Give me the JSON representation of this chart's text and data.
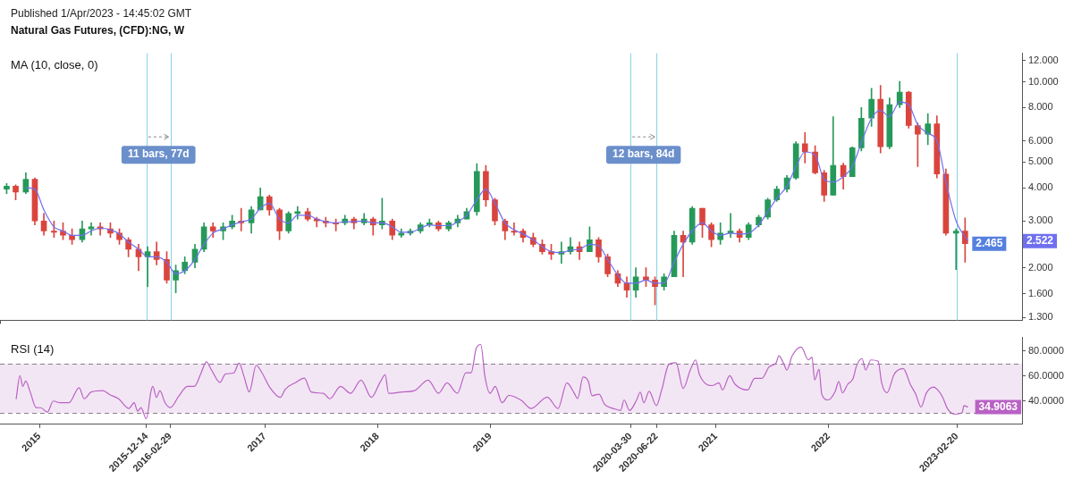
{
  "chart_data": [
    {
      "type": "candlestick",
      "subtitle": "Published 1/Apr/2023 - 14:45:02 GMT",
      "title": "Natural Gas Futures, (CFD):NG, W",
      "log": true,
      "tick_labels": "y",
      "xlim": [
        2014.651,
        2023.715
      ],
      "ylim": [
        1.27,
        12.8
      ],
      "yticks": [
        {
          "value": 1.3,
          "label": "1.300"
        },
        {
          "value": 1.6,
          "label": "1.600"
        },
        {
          "value": 2,
          "label": "2.000"
        },
        {
          "value": 3,
          "label": "3.000"
        },
        {
          "value": 4,
          "label": "4.000"
        },
        {
          "value": 5,
          "label": "5.000"
        },
        {
          "value": 6,
          "label": "6.000"
        },
        {
          "value": 8,
          "label": "8.000"
        },
        {
          "value": 10,
          "label": "10.000"
        },
        {
          "value": 12,
          "label": "12.000"
        }
      ],
      "ref_lines": [
        {
          "axis": "x",
          "value": 2015.951,
          "color": "#86d3e4",
          "label": "11 bars, 77d"
        },
        {
          "axis": "x",
          "value": 2016.162,
          "color": "#86d3e4"
        },
        {
          "axis": "x",
          "value": 2020.243,
          "color": "#86d3e4",
          "label": "12 bars, 84d"
        },
        {
          "axis": "x",
          "value": 2020.473,
          "color": "#86d3e4"
        },
        {
          "axis": "x",
          "value": 2023.137,
          "color": "#86d3e4"
        }
      ],
      "annotations": [
        "MA (10, close, 0)",
        {
          "text": "2.522",
          "y": 2.522
        },
        {
          "text": "2.465",
          "x": 2023.21,
          "y": 2.465
        }
      ],
      "series": [
        {
          "type": "candlestick",
          "x": [
            2014.71,
            2014.79,
            2014.88,
            2014.96,
            2015.04,
            2015.13,
            2015.21,
            2015.29,
            2015.38,
            2015.46,
            2015.54,
            2015.63,
            2015.71,
            2015.79,
            2015.88,
            2015.96,
            2016.04,
            2016.13,
            2016.21,
            2016.29,
            2016.38,
            2016.46,
            2016.54,
            2016.63,
            2016.71,
            2016.79,
            2016.88,
            2016.96,
            2017.04,
            2017.13,
            2017.21,
            2017.29,
            2017.38,
            2017.46,
            2017.54,
            2017.63,
            2017.71,
            2017.79,
            2017.88,
            2017.96,
            2018.04,
            2018.13,
            2018.21,
            2018.29,
            2018.38,
            2018.46,
            2018.54,
            2018.63,
            2018.71,
            2018.79,
            2018.88,
            2018.96,
            2019.04,
            2019.13,
            2019.21,
            2019.29,
            2019.38,
            2019.46,
            2019.54,
            2019.63,
            2019.71,
            2019.79,
            2019.88,
            2019.96,
            2020.04,
            2020.13,
            2020.21,
            2020.29,
            2020.38,
            2020.46,
            2020.54,
            2020.63,
            2020.71,
            2020.79,
            2020.88,
            2020.96,
            2021.04,
            2021.13,
            2021.21,
            2021.29,
            2021.38,
            2021.46,
            2021.54,
            2021.63,
            2021.71,
            2021.79,
            2021.88,
            2021.96,
            2022.04,
            2022.13,
            2022.21,
            2022.29,
            2022.38,
            2022.46,
            2022.54,
            2022.63,
            2022.71,
            2022.79,
            2022.88,
            2022.96,
            2023.04,
            2023.13,
            2023.21
          ],
          "ohlc": [
            [
              3.95,
              4.15,
              3.8,
              4.05
            ],
            [
              4.05,
              4.1,
              3.6,
              3.85
            ],
            [
              3.85,
              4.55,
              3.8,
              4.3
            ],
            [
              4.3,
              4.35,
              2.9,
              3.0
            ],
            [
              3.0,
              3.2,
              2.65,
              2.75
            ],
            [
              2.75,
              3.0,
              2.6,
              2.72
            ],
            [
              2.75,
              2.95,
              2.55,
              2.65
            ],
            [
              2.65,
              2.8,
              2.45,
              2.55
            ],
            [
              2.55,
              3.0,
              2.5,
              2.8
            ],
            [
              2.8,
              2.95,
              2.65,
              2.85
            ],
            [
              2.85,
              2.95,
              2.65,
              2.8
            ],
            [
              2.8,
              2.95,
              2.6,
              2.7
            ],
            [
              2.7,
              2.8,
              2.45,
              2.55
            ],
            [
              2.55,
              2.6,
              2.2,
              2.35
            ],
            [
              2.35,
              2.45,
              1.95,
              2.2
            ],
            [
              2.2,
              2.4,
              1.7,
              2.3
            ],
            [
              2.3,
              2.5,
              2.05,
              2.15
            ],
            [
              2.15,
              2.3,
              1.75,
              1.8
            ],
            [
              1.8,
              2.05,
              1.61,
              1.95
            ],
            [
              1.95,
              2.2,
              1.9,
              2.1
            ],
            [
              2.1,
              2.45,
              2.0,
              2.35
            ],
            [
              2.35,
              2.95,
              2.3,
              2.85
            ],
            [
              2.85,
              2.95,
              2.6,
              2.75
            ],
            [
              2.75,
              2.95,
              2.55,
              2.85
            ],
            [
              2.85,
              3.15,
              2.8,
              3.0
            ],
            [
              3.0,
              3.35,
              2.75,
              2.95
            ],
            [
              2.95,
              3.4,
              2.7,
              3.3
            ],
            [
              3.3,
              3.99,
              3.3,
              3.7
            ],
            [
              3.7,
              3.75,
              3.15,
              3.3
            ],
            [
              3.3,
              3.35,
              2.55,
              2.75
            ],
            [
              2.75,
              3.25,
              2.7,
              3.2
            ],
            [
              3.2,
              3.4,
              3.05,
              3.25
            ],
            [
              3.25,
              3.35,
              3.0,
              3.05
            ],
            [
              3.05,
              3.1,
              2.85,
              3.0
            ],
            [
              3.0,
              3.1,
              2.85,
              2.95
            ],
            [
              2.95,
              3.05,
              2.75,
              2.92
            ],
            [
              2.95,
              3.15,
              2.9,
              3.05
            ],
            [
              3.05,
              3.1,
              2.8,
              2.95
            ],
            [
              2.95,
              3.2,
              2.9,
              3.05
            ],
            [
              3.05,
              3.1,
              2.65,
              2.9
            ],
            [
              2.9,
              3.65,
              2.8,
              3.0
            ],
            [
              3.0,
              3.05,
              2.55,
              2.65
            ],
            [
              2.65,
              2.8,
              2.6,
              2.7
            ],
            [
              2.7,
              2.8,
              2.65,
              2.75
            ],
            [
              2.75,
              2.95,
              2.7,
              2.9
            ],
            [
              2.9,
              3.05,
              2.85,
              2.95
            ],
            [
              2.95,
              3.0,
              2.75,
              2.8
            ],
            [
              2.8,
              3.0,
              2.75,
              2.95
            ],
            [
              2.95,
              3.15,
              2.85,
              3.05
            ],
            [
              3.05,
              3.35,
              3.05,
              3.25
            ],
            [
              3.25,
              4.93,
              3.15,
              4.6
            ],
            [
              4.6,
              4.85,
              3.4,
              3.6
            ],
            [
              3.6,
              3.65,
              2.9,
              3.0
            ],
            [
              3.0,
              3.05,
              2.55,
              2.75
            ],
            [
              2.75,
              2.95,
              2.65,
              2.72
            ],
            [
              2.75,
              2.8,
              2.5,
              2.6
            ],
            [
              2.6,
              2.7,
              2.4,
              2.45
            ],
            [
              2.45,
              2.55,
              2.25,
              2.3
            ],
            [
              2.3,
              2.45,
              2.15,
              2.25
            ],
            [
              2.25,
              2.5,
              2.08,
              2.3
            ],
            [
              2.3,
              2.6,
              2.25,
              2.4
            ],
            [
              2.4,
              2.5,
              2.15,
              2.3
            ],
            [
              2.3,
              2.85,
              2.3,
              2.55
            ],
            [
              2.55,
              2.6,
              2.1,
              2.2
            ],
            [
              2.2,
              2.25,
              1.85,
              1.9
            ],
            [
              1.9,
              1.95,
              1.7,
              1.75
            ],
            [
              1.75,
              1.85,
              1.55,
              1.65
            ],
            [
              1.65,
              2.0,
              1.55,
              1.85
            ],
            [
              1.85,
              2.0,
              1.7,
              1.8
            ],
            [
              1.8,
              1.85,
              1.45,
              1.7
            ],
            [
              1.7,
              1.9,
              1.65,
              1.85
            ],
            [
              1.85,
              2.75,
              1.85,
              2.65
            ],
            [
              2.65,
              2.75,
              1.85,
              2.5
            ],
            [
              2.5,
              3.4,
              2.45,
              3.35
            ],
            [
              3.35,
              3.35,
              2.6,
              2.9
            ],
            [
              2.9,
              2.95,
              2.4,
              2.55
            ],
            [
              2.55,
              2.95,
              2.45,
              2.7
            ],
            [
              2.7,
              3.2,
              2.6,
              2.75
            ],
            [
              2.75,
              2.8,
              2.5,
              2.6
            ],
            [
              2.6,
              2.95,
              2.55,
              2.9
            ],
            [
              2.9,
              3.15,
              2.85,
              3.1
            ],
            [
              3.1,
              3.65,
              3.05,
              3.6
            ],
            [
              3.6,
              4.05,
              3.55,
              3.95
            ],
            [
              3.95,
              4.45,
              3.85,
              4.35
            ],
            [
              4.35,
              5.95,
              4.3,
              5.85
            ],
            [
              5.85,
              6.45,
              4.95,
              5.45
            ],
            [
              5.45,
              5.75,
              4.5,
              4.55
            ],
            [
              4.55,
              4.65,
              3.55,
              3.75
            ],
            [
              3.75,
              7.4,
              3.75,
              4.85
            ],
            [
              4.85,
              4.95,
              3.95,
              4.4
            ],
            [
              4.4,
              5.7,
              4.4,
              5.65
            ],
            [
              5.65,
              8.0,
              5.5,
              7.3
            ],
            [
              7.3,
              9.45,
              6.8,
              8.6
            ],
            [
              8.6,
              9.7,
              5.4,
              5.7
            ],
            [
              5.7,
              8.7,
              5.6,
              8.2
            ],
            [
              8.2,
              10.03,
              8.0,
              9.15
            ],
            [
              9.15,
              9.2,
              6.7,
              6.85
            ],
            [
              6.85,
              7.0,
              4.8,
              6.35
            ],
            [
              6.35,
              7.6,
              5.8,
              6.95
            ],
            [
              6.95,
              7.45,
              4.35,
              4.5
            ],
            [
              4.5,
              4.7,
              2.65,
              2.7
            ],
            [
              2.7,
              2.8,
              1.97,
              2.75
            ],
            [
              2.75,
              3.08,
              2.1,
              2.465
            ]
          ],
          "colors": [
            "#26995a",
            "#d9453d",
            "#26995a",
            "#d9453d",
            "#d9453d",
            "#d9453d",
            "#d9453d",
            "#d9453d",
            "#26995a",
            "#26995a",
            "#d9453d",
            "#d9453d",
            "#d9453d",
            "#d9453d",
            "#d9453d",
            "#26995a",
            "#d9453d",
            "#d9453d",
            "#26995a",
            "#26995a",
            "#26995a",
            "#26995a",
            "#d9453d",
            "#26995a",
            "#26995a",
            "#d9453d",
            "#26995a",
            "#26995a",
            "#d9453d",
            "#d9453d",
            "#26995a",
            "#26995a",
            "#d9453d",
            "#d9453d",
            "#d9453d",
            "#d9453d",
            "#26995a",
            "#d9453d",
            "#26995a",
            "#d9453d",
            "#26995a",
            "#d9453d",
            "#26995a",
            "#26995a",
            "#26995a",
            "#26995a",
            "#d9453d",
            "#26995a",
            "#26995a",
            "#26995a",
            "#26995a",
            "#d9453d",
            "#d9453d",
            "#d9453d",
            "#d9453d",
            "#d9453d",
            "#d9453d",
            "#d9453d",
            "#d9453d",
            "#26995a",
            "#26995a",
            "#d9453d",
            "#26995a",
            "#d9453d",
            "#d9453d",
            "#d9453d",
            "#d9453d",
            "#26995a",
            "#d9453d",
            "#d9453d",
            "#26995a",
            "#26995a",
            "#d9453d",
            "#26995a",
            "#d9453d",
            "#d9453d",
            "#26995a",
            "#26995a",
            "#d9453d",
            "#26995a",
            "#26995a",
            "#26995a",
            "#26995a",
            "#26995a",
            "#26995a",
            "#d9453d",
            "#d9453d",
            "#d9453d",
            "#26995a",
            "#d9453d",
            "#26995a",
            "#26995a",
            "#26995a",
            "#d9453d",
            "#26995a",
            "#26995a",
            "#d9453d",
            "#d9453d",
            "#26995a",
            "#d9453d",
            "#d9453d",
            "#26995a",
            "#d9453d"
          ]
        },
        {
          "type": "line",
          "color": "#6f6ff0",
          "x": [
            2014.88,
            2014.96,
            2015.04,
            2015.13,
            2015.21,
            2015.29,
            2015.38,
            2015.46,
            2015.54,
            2015.63,
            2015.71,
            2015.79,
            2015.88,
            2015.96,
            2016.04,
            2016.13,
            2016.21,
            2016.29,
            2016.38,
            2016.46,
            2016.54,
            2016.63,
            2016.71,
            2016.79,
            2016.88,
            2016.96,
            2017.04,
            2017.13,
            2017.21,
            2017.29,
            2017.38,
            2017.46,
            2017.54,
            2017.63,
            2017.71,
            2017.79,
            2017.88,
            2017.96,
            2018.04,
            2018.13,
            2018.21,
            2018.29,
            2018.38,
            2018.46,
            2018.54,
            2018.63,
            2018.71,
            2018.79,
            2018.88,
            2018.96,
            2019.04,
            2019.13,
            2019.21,
            2019.29,
            2019.38,
            2019.46,
            2019.54,
            2019.63,
            2019.71,
            2019.79,
            2019.88,
            2019.96,
            2020.04,
            2020.13,
            2020.21,
            2020.29,
            2020.38,
            2020.46,
            2020.54,
            2020.63,
            2020.71,
            2020.79,
            2020.88,
            2020.96,
            2021.04,
            2021.13,
            2021.21,
            2021.29,
            2021.38,
            2021.46,
            2021.54,
            2021.63,
            2021.71,
            2021.79,
            2021.88,
            2021.96,
            2022.04,
            2022.13,
            2022.21,
            2022.29,
            2022.38,
            2022.46,
            2022.54,
            2022.63,
            2022.71,
            2022.79,
            2022.88,
            2022.96,
            2023.04,
            2023.13,
            2023.236
          ],
          "values": [
            4.0,
            3.95,
            3.3,
            2.85,
            2.75,
            2.65,
            2.65,
            2.75,
            2.82,
            2.78,
            2.68,
            2.5,
            2.35,
            2.2,
            2.2,
            2.1,
            1.9,
            1.95,
            2.15,
            2.45,
            2.7,
            2.8,
            2.9,
            2.98,
            3.05,
            3.35,
            3.5,
            3.05,
            2.95,
            3.15,
            3.15,
            3.05,
            2.98,
            2.95,
            2.98,
            2.98,
            3.0,
            2.95,
            2.95,
            2.85,
            2.72,
            2.72,
            2.82,
            2.9,
            2.88,
            2.88,
            2.98,
            3.15,
            3.6,
            3.95,
            3.5,
            2.95,
            2.78,
            2.68,
            2.55,
            2.4,
            2.3,
            2.28,
            2.33,
            2.35,
            2.45,
            2.42,
            2.15,
            1.88,
            1.75,
            1.75,
            1.8,
            1.75,
            1.75,
            2.1,
            2.45,
            2.75,
            2.95,
            2.75,
            2.65,
            2.7,
            2.68,
            2.7,
            2.9,
            3.25,
            3.65,
            4.05,
            4.8,
            5.45,
            5.3,
            4.3,
            4.2,
            4.4,
            4.8,
            5.9,
            7.3,
            7.8,
            7.4,
            8.4,
            8.2,
            6.9,
            6.4,
            6.0,
            4.2,
            3.0,
            2.522
          ]
        }
      ]
    },
    {
      "type": "line",
      "title": "RSI (14)",
      "xlim": [
        2014.651,
        2023.715
      ],
      "ylim": [
        21,
        91
      ],
      "xticks": [
        2015,
        {
          "value": 2015.951,
          "label": "2015-12-14"
        },
        {
          "value": 2016.162,
          "label": "2016-02-29"
        },
        2017,
        2018,
        2019,
        {
          "value": 2020.243,
          "label": "2020-03-30"
        },
        {
          "value": 2020.473,
          "label": "2020-06-22"
        },
        2021,
        2022,
        {
          "value": 2023.137,
          "label": "2023-02-20"
        }
      ],
      "yticks": [
        {
          "value": 40,
          "label": "40.0000"
        },
        {
          "value": 60,
          "label": "60.0000"
        },
        {
          "value": 80,
          "label": "80.0000"
        }
      ],
      "ref_lines": [
        {
          "axis": "y",
          "value": 70,
          "color": "#8a808a",
          "line_style": "dashed"
        },
        {
          "axis": "y",
          "value": 30,
          "color": "#8a808a",
          "line_style": "dashed"
        }
      ],
      "bands": [
        {
          "axis": "y",
          "from": 30,
          "to": 70,
          "color": "#f3e6f4"
        }
      ],
      "annotations": [
        {
          "text": "34.9063",
          "x": 2023.236,
          "y": 34.9063
        }
      ],
      "series": [
        {
          "color": "#b862c4",
          "x": [
            2014.794,
            2014.828,
            2014.853,
            2014.879,
            2014.919,
            2014.971,
            2015.011,
            2015.071,
            2015.124,
            2015.185,
            2015.262,
            2015.353,
            2015.398,
            2015.46,
            2015.563,
            2015.626,
            2015.703,
            2015.793,
            2015.841,
            2015.871,
            2015.902,
            2015.948,
            2015.991,
            2016.007,
            2016.039,
            2016.069,
            2016.115,
            2016.161,
            2016.237,
            2016.313,
            2016.374,
            2016.435,
            2016.481,
            2016.527,
            2016.602,
            2016.649,
            2016.725,
            2016.771,
            2016.816,
            2016.862,
            2016.923,
            2016.967,
            2017.046,
            2017.137,
            2017.181,
            2017.274,
            2017.35,
            2017.411,
            2017.518,
            2017.577,
            2017.671,
            2017.76,
            2017.853,
            2017.945,
            2018.021,
            2018.067,
            2018.097,
            2018.22,
            2018.327,
            2018.448,
            2018.54,
            2018.616,
            2018.707,
            2018.783,
            2018.83,
            2018.875,
            2018.915,
            2018.952,
            2018.997,
            2019.043,
            2019.104,
            2019.163,
            2019.272,
            2019.362,
            2019.504,
            2019.6,
            2019.679,
            2019.742,
            2019.774,
            2019.822,
            2019.869,
            2019.901,
            2019.964,
            2020.012,
            2020.091,
            2020.155,
            2020.186,
            2020.234,
            2020.297,
            2020.329,
            2020.361,
            2020.408,
            2020.472,
            2020.519,
            2020.583,
            2020.646,
            2020.71,
            2020.773,
            2020.821,
            2020.853,
            2020.9,
            2020.964,
            2021.027,
            2021.059,
            2021.122,
            2021.17,
            2021.281,
            2021.344,
            2021.408,
            2021.471,
            2021.535,
            2021.558,
            2021.598,
            2021.63,
            2021.677,
            2021.757,
            2021.82,
            2021.852,
            2021.876,
            2021.915,
            2021.939,
            2021.995,
            2022.058,
            2022.09,
            2022.122,
            2022.169,
            2022.217,
            2022.248,
            2022.296,
            2022.328,
            2022.375,
            2022.439,
            2022.47,
            2022.518,
            2022.581,
            2022.661,
            2022.724,
            2022.772,
            2022.819,
            2022.867,
            2022.93,
            2022.978,
            2023.01,
            2023.057,
            2023.121,
            2023.184,
            2023.2,
            2023.236
          ],
          "values": [
            41.3,
            60.3,
            51.6,
            55.9,
            47.1,
            34.5,
            34.4,
            30.9,
            39.8,
            38.4,
            38.4,
            50.5,
            41.6,
            47.1,
            48.2,
            44.9,
            41.6,
            33.8,
            38.4,
            31.6,
            34.5,
            25.5,
            48.2,
            51.6,
            42.7,
            48.2,
            38.4,
            34.5,
            43.8,
            51.6,
            51.6,
            62.5,
            71.4,
            64.8,
            54.8,
            61.5,
            62.5,
            70.3,
            59.3,
            47.1,
            68.6,
            63.7,
            50.5,
            42.7,
            49.3,
            54.8,
            58.2,
            47.1,
            46,
            41.6,
            51.6,
            46,
            56.6,
            42.7,
            54.8,
            61,
            46,
            47.1,
            48.2,
            56.6,
            46,
            54.4,
            46,
            62.5,
            62.5,
            82.5,
            85.3,
            59.3,
            46,
            51.6,
            38.4,
            44.3,
            40.5,
            33.8,
            43,
            33.8,
            54.5,
            46.4,
            41.8,
            59.1,
            55.6,
            44.1,
            45.3,
            37.2,
            33.8,
            32.2,
            40.7,
            32.2,
            40.7,
            47,
            38.4,
            47.6,
            36.1,
            48.7,
            69.4,
            70.6,
            49.9,
            64.8,
            72.9,
            61.4,
            54.5,
            52.2,
            54.5,
            48.7,
            60.2,
            53.3,
            48.7,
            58,
            58,
            67.2,
            70.6,
            76.3,
            70.6,
            64.8,
            76.3,
            83.2,
            72.9,
            75.2,
            56.8,
            65.4,
            45.3,
            40.7,
            47.6,
            55.6,
            46.4,
            53.3,
            58,
            68.3,
            74,
            64.8,
            72.9,
            71.8,
            54.5,
            46.4,
            61.4,
            66,
            53.3,
            45.3,
            35,
            46.4,
            51,
            47.6,
            43,
            33.2,
            29.2,
            30.4,
            36.1,
            34.9063
          ]
        }
      ]
    }
  ]
}
